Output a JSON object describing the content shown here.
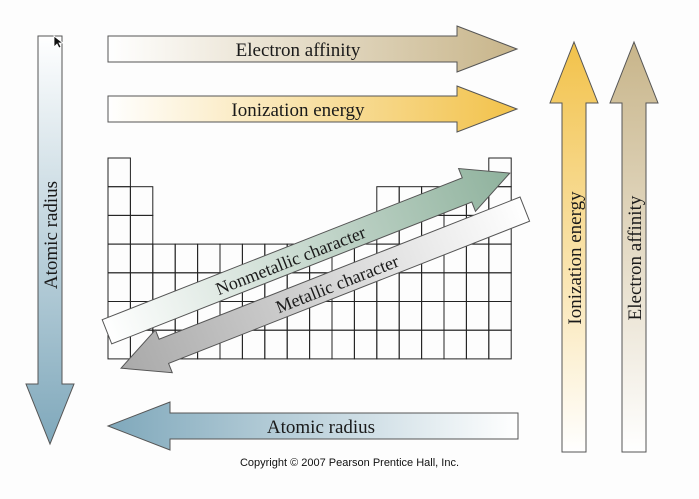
{
  "arrows": {
    "electron_affinity_horizontal": "Electron affinity",
    "ionization_energy_horizontal": "Ionization energy",
    "atomic_radius_vertical": "Atomic radius",
    "atomic_radius_horizontal": "Atomic radius",
    "ionization_energy_vertical": "Ionization energy",
    "electron_affinity_vertical": "Electron affinity",
    "nonmetallic_character": "Nonmetallic character",
    "metallic_character": "Metallic character"
  },
  "colors": {
    "affinity": "#c8b58a",
    "ionization": "#f2c24a",
    "radius": "#7fa8bb",
    "nonmetallic": "#8fb29d",
    "metallic": "#a9a9a9"
  },
  "copyright": "Copyright © 2007 Pearson Prentice Hall, Inc."
}
